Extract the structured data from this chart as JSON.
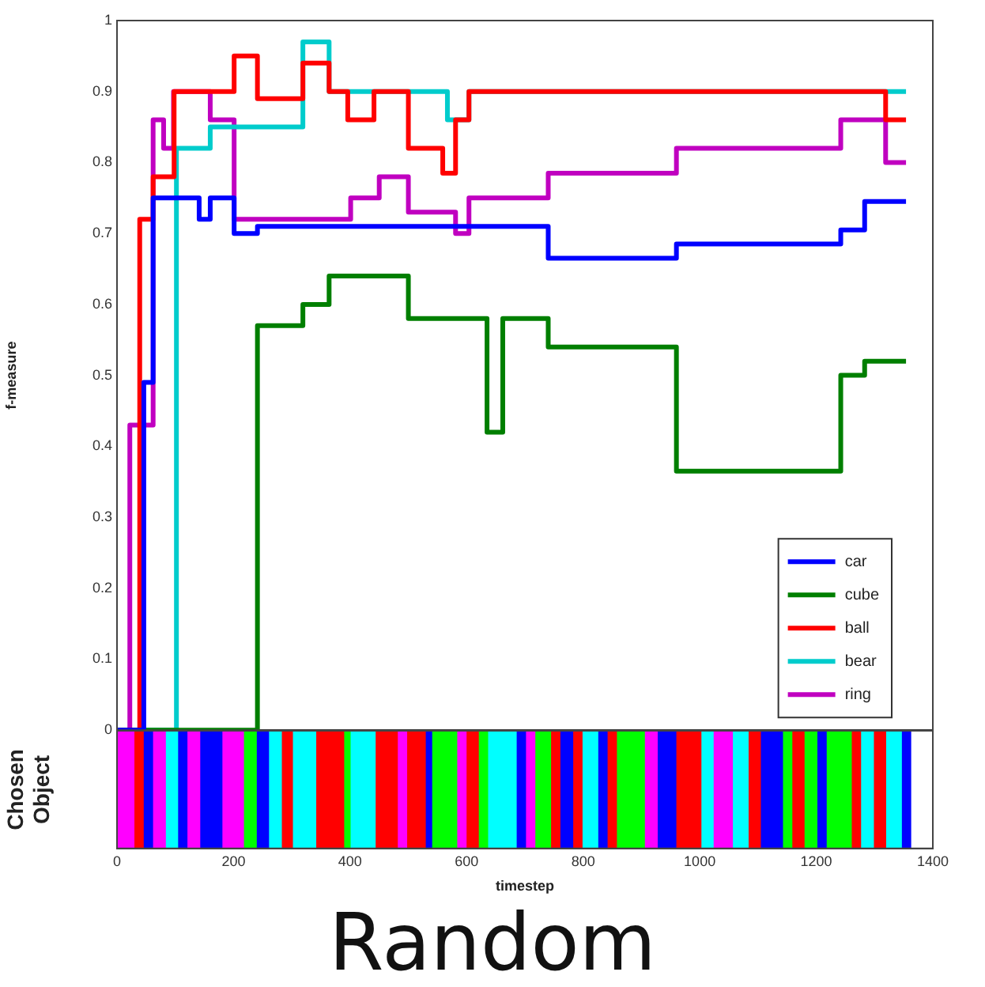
{
  "chart_data": [
    {
      "type": "step",
      "ylabel": "f-measure",
      "xlim": [
        0,
        1400
      ],
      "xticks": [
        0,
        200,
        400,
        600,
        800,
        1000,
        1200,
        1400
      ],
      "ylim": [
        0,
        1
      ],
      "yticks": [
        0,
        0.1,
        0.2,
        0.3,
        0.4,
        0.5,
        0.6,
        0.7,
        0.8,
        0.9,
        1
      ],
      "tick_labels": "y",
      "legend": "bottom right",
      "series": [
        {
          "name": "car",
          "color": "#0000ff",
          "x": [
            0,
            46,
            62,
            141,
            160,
            201,
            241,
            740,
            960,
            1242,
            1283,
            1354
          ],
          "values": [
            0,
            0.49,
            0.75,
            0.72,
            0.75,
            0.7,
            0.71,
            0.665,
            0.685,
            0.705,
            0.745,
            0.745
          ]
        },
        {
          "name": "cube",
          "color": "#007f00",
          "x": [
            0,
            241,
            319,
            364,
            500,
            635,
            662,
            740,
            960,
            1242,
            1283,
            1354
          ],
          "values": [
            0,
            0.57,
            0.6,
            0.64,
            0.58,
            0.42,
            0.58,
            0.54,
            0.365,
            0.5,
            0.52,
            0.52
          ]
        },
        {
          "name": "ball",
          "color": "#ff0000",
          "x": [
            0,
            39,
            62,
            98,
            201,
            241,
            319,
            364,
            396,
            441,
            500,
            559,
            581,
            604,
            1319,
            1354
          ],
          "values": [
            0,
            0.72,
            0.78,
            0.9,
            0.95,
            0.89,
            0.94,
            0.9,
            0.86,
            0.9,
            0.82,
            0.785,
            0.86,
            0.9,
            0.86,
            0.86
          ]
        },
        {
          "name": "bear",
          "color": "#00cccc",
          "x": [
            0,
            102,
            160,
            319,
            364,
            567,
            604,
            1354
          ],
          "values": [
            0,
            0.82,
            0.85,
            0.97,
            0.9,
            0.86,
            0.9,
            0.9
          ]
        },
        {
          "name": "ring",
          "color": "#c000c0",
          "x": [
            0,
            22,
            62,
            80,
            97,
            160,
            201,
            401,
            450,
            500,
            581,
            604,
            740,
            960,
            1242,
            1319,
            1354
          ],
          "values": [
            0,
            0.43,
            0.86,
            0.82,
            0.9,
            0.86,
            0.72,
            0.75,
            0.78,
            0.73,
            0.7,
            0.75,
            0.785,
            0.82,
            0.86,
            0.8,
            0.8
          ]
        }
      ]
    },
    {
      "type": "bar",
      "orientation": "horizontal",
      "stacked": true,
      "categories": [
        null
      ],
      "xlim": [
        0,
        1400
      ],
      "xticks": [
        0,
        200,
        400,
        600,
        800,
        1000,
        1200,
        1400
      ],
      "xlabel": "timestep",
      "ylabel": "Chosen Object",
      "tick_labels": "x",
      "annotations": [
        "Random"
      ],
      "series": [
        {
          "color": "#ff00ff",
          "values": [
            29
          ]
        },
        {
          "color": "#ff0000",
          "values": [
            16
          ]
        },
        {
          "color": "#0000ff",
          "values": [
            16
          ]
        },
        {
          "color": "#ff00ff",
          "values": [
            22
          ]
        },
        {
          "color": "#00ffff",
          "values": [
            21
          ]
        },
        {
          "color": "#0000ff",
          "values": [
            16
          ]
        },
        {
          "color": "#ff00ff",
          "values": [
            22
          ]
        },
        {
          "color": "#0000ff",
          "values": [
            38
          ]
        },
        {
          "color": "#ff00ff",
          "values": [
            37
          ]
        },
        {
          "color": "#00ff00",
          "values": [
            22
          ]
        },
        {
          "color": "#0000ff",
          "values": [
            21
          ]
        },
        {
          "color": "#00ffff",
          "values": [
            22
          ]
        },
        {
          "color": "#ff0000",
          "values": [
            19
          ]
        },
        {
          "color": "#00ffff",
          "values": [
            40
          ]
        },
        {
          "color": "#ff0000",
          "values": [
            48
          ]
        },
        {
          "color": "#00ff00",
          "values": [
            11
          ]
        },
        {
          "color": "#00ffff",
          "values": [
            43
          ]
        },
        {
          "color": "#ff0000",
          "values": [
            38
          ]
        },
        {
          "color": "#ff00ff",
          "values": [
            16
          ]
        },
        {
          "color": "#ff0000",
          "values": [
            32
          ]
        },
        {
          "color": "#0000ff",
          "values": [
            11
          ]
        },
        {
          "color": "#00ff00",
          "values": [
            43
          ]
        },
        {
          "color": "#ff00ff",
          "values": [
            16
          ]
        },
        {
          "color": "#ff0000",
          "values": [
            21
          ]
        },
        {
          "color": "#00ff00",
          "values": [
            16
          ]
        },
        {
          "color": "#00ffff",
          "values": [
            49
          ]
        },
        {
          "color": "#0000ff",
          "values": [
            16
          ]
        },
        {
          "color": "#ff00ff",
          "values": [
            16
          ]
        },
        {
          "color": "#00ff00",
          "values": [
            27
          ]
        },
        {
          "color": "#ff0000",
          "values": [
            16
          ]
        },
        {
          "color": "#0000ff",
          "values": [
            22
          ]
        },
        {
          "color": "#ff0000",
          "values": [
            16
          ]
        },
        {
          "color": "#00ffff",
          "values": [
            27
          ]
        },
        {
          "color": "#0000ff",
          "values": [
            16
          ]
        },
        {
          "color": "#ff0000",
          "values": [
            16
          ]
        },
        {
          "color": "#00ff00",
          "values": [
            48
          ]
        },
        {
          "color": "#ff00ff",
          "values": [
            22
          ]
        },
        {
          "color": "#0000ff",
          "values": [
            32
          ]
        },
        {
          "color": "#ff0000",
          "values": [
            43
          ]
        },
        {
          "color": "#00ffff",
          "values": [
            21
          ]
        },
        {
          "color": "#ff00ff",
          "values": [
            33
          ]
        },
        {
          "color": "#00ffff",
          "values": [
            27
          ]
        },
        {
          "color": "#ff0000",
          "values": [
            21
          ]
        },
        {
          "color": "#0000ff",
          "values": [
            38
          ]
        },
        {
          "color": "#00ff00",
          "values": [
            16
          ]
        },
        {
          "color": "#ff0000",
          "values": [
            21
          ]
        },
        {
          "color": "#00ff00",
          "values": [
            22
          ]
        },
        {
          "color": "#0000ff",
          "values": [
            16
          ]
        },
        {
          "color": "#00ff00",
          "values": [
            43
          ]
        },
        {
          "color": "#ff0000",
          "values": [
            16
          ]
        },
        {
          "color": "#00ffff",
          "values": [
            22
          ]
        },
        {
          "color": "#ff0000",
          "values": [
            21
          ]
        },
        {
          "color": "#00ffff",
          "values": [
            27
          ]
        },
        {
          "color": "#0000ff",
          "values": [
            16
          ]
        }
      ]
    }
  ]
}
